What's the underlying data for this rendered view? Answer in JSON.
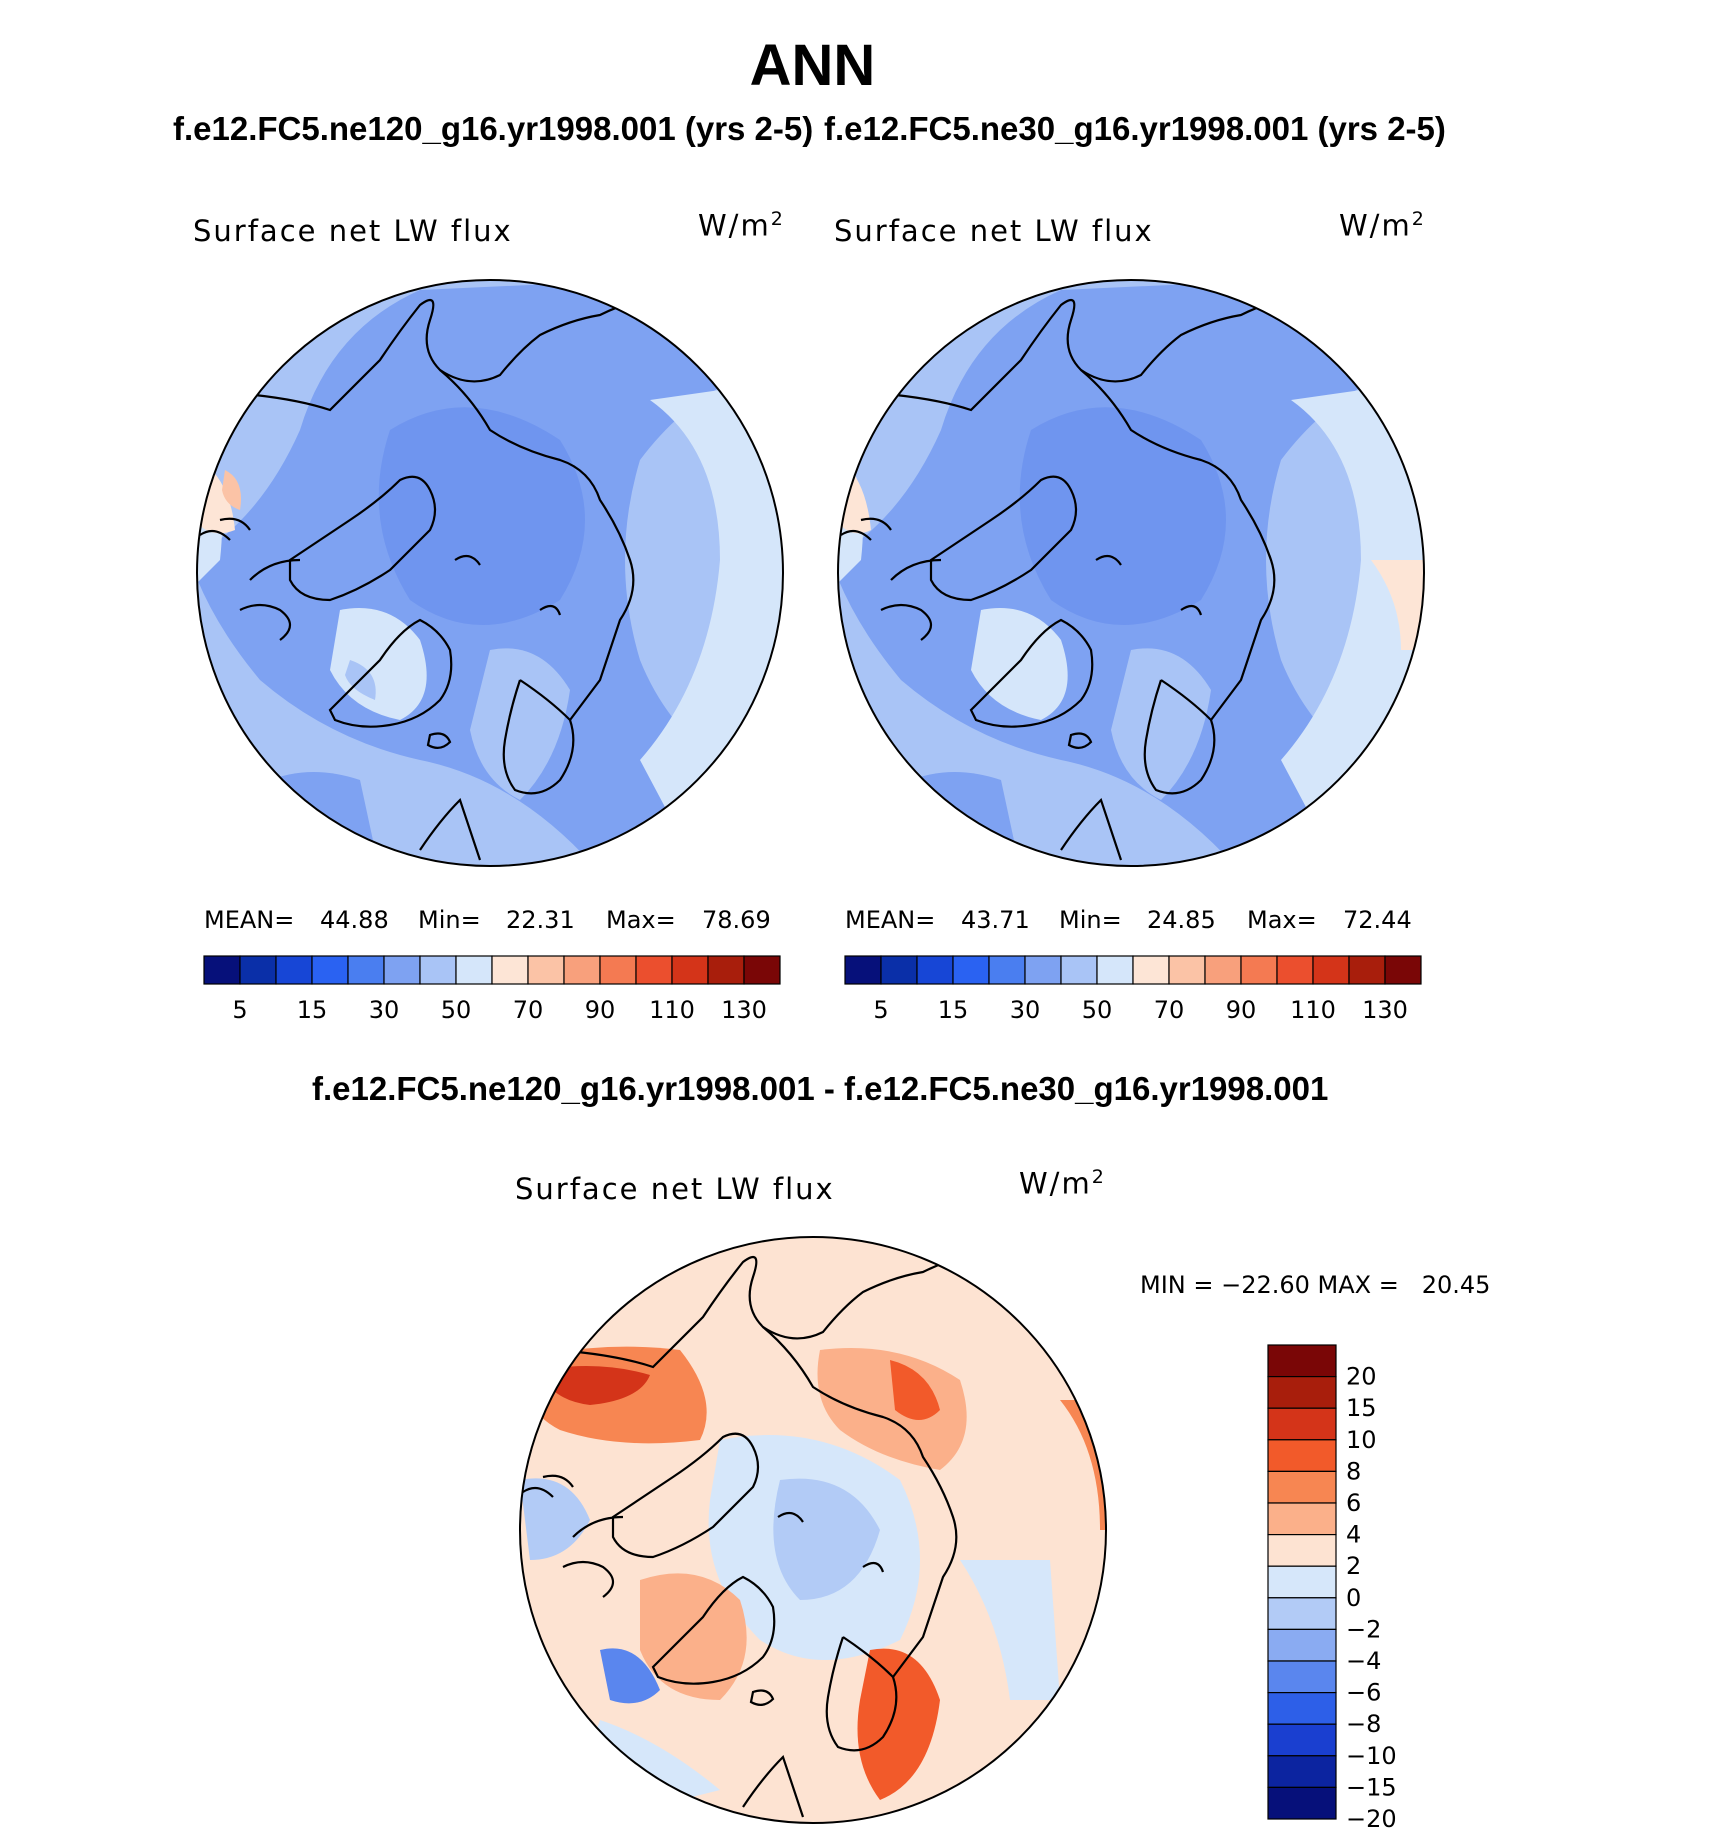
{
  "figure": {
    "title": "ANN",
    "case_left": "f.e12.FC5.ne120_g16.yr1998.001 (yrs 2-5)",
    "case_right": "f.e12.FC5.ne30_g16.yr1998.001 (yrs 2-5)",
    "diff_title": "f.e12.FC5.ne120_g16.yr1998.001 - f.e12.FC5.ne30_g16.yr1998.001"
  },
  "colors": {
    "ocean_band_dark": "#a8c4f2",
    "land_outline": "#000000"
  },
  "chart_data": [
    {
      "type": "heatmap",
      "projection": "north polar stereographic",
      "panel_title": "Surface net LW flux",
      "units": "W/m",
      "units_sup": "2",
      "stats": {
        "mean_label": "MEAN=",
        "mean": "44.88",
        "min_label": "Min=",
        "min": "22.31",
        "max_label": "Max=",
        "max": "78.69"
      },
      "colorbar": {
        "orientation": "horizontal",
        "levels": [
          5,
          10,
          15,
          20,
          30,
          40,
          50,
          60,
          70,
          80,
          90,
          100,
          110,
          120,
          130
        ],
        "tick_labels": [
          "5",
          "15",
          "30",
          "50",
          "70",
          "90",
          "110",
          "130"
        ],
        "colors": [
          "#06107a",
          "#0a2fa8",
          "#1746d6",
          "#2a62f2",
          "#4a7ef0",
          "#7ea2f2",
          "#a9c4f6",
          "#d5e6fa",
          "#fde5d6",
          "#fbc3a6",
          "#f8a07c",
          "#f47a52",
          "#eb4f2e",
          "#d43419",
          "#a81e0c",
          "#7a0606"
        ]
      }
    },
    {
      "type": "heatmap",
      "projection": "north polar stereographic",
      "panel_title": "Surface net LW flux",
      "units": "W/m",
      "units_sup": "2",
      "stats": {
        "mean_label": "MEAN=",
        "mean": "43.71",
        "min_label": "Min=",
        "min": "24.85",
        "max_label": "Max=",
        "max": "72.44"
      },
      "colorbar": {
        "orientation": "horizontal",
        "levels": [
          5,
          10,
          15,
          20,
          30,
          40,
          50,
          60,
          70,
          80,
          90,
          100,
          110,
          120,
          130
        ],
        "tick_labels": [
          "5",
          "15",
          "30",
          "50",
          "70",
          "90",
          "110",
          "130"
        ],
        "colors": [
          "#06107a",
          "#0a2fa8",
          "#1746d6",
          "#2a62f2",
          "#4a7ef0",
          "#7ea2f2",
          "#a9c4f6",
          "#d5e6fa",
          "#fde5d6",
          "#fbc3a6",
          "#f8a07c",
          "#f47a52",
          "#eb4f2e",
          "#d43419",
          "#a81e0c",
          "#7a0606"
        ]
      }
    },
    {
      "type": "heatmap",
      "projection": "north polar stereographic",
      "panel_title": "Surface net LW flux",
      "units": "W/m",
      "units_sup": "2",
      "stats": {
        "text": "MIN = −22.60 MAX =   20.45"
      },
      "colorbar": {
        "orientation": "vertical",
        "levels": [
          20,
          15,
          10,
          8,
          6,
          4,
          2,
          0,
          -2,
          -4,
          -6,
          -8,
          -10,
          -15,
          -20
        ],
        "tick_labels": [
          "20",
          "15",
          "10",
          "8",
          "6",
          "4",
          "2",
          "0",
          "−2",
          "−4",
          "−6",
          "−8",
          "−10",
          "−15",
          "−20"
        ],
        "colors": [
          "#7a0606",
          "#a81e0c",
          "#d43419",
          "#f25a2a",
          "#f78652",
          "#fbb08a",
          "#fde3d2",
          "#d6e7fa",
          "#b2cbf6",
          "#8aabf2",
          "#5a86ee",
          "#2d5fe8",
          "#1a3fd0",
          "#0c24a0",
          "#06107a"
        ]
      }
    }
  ]
}
